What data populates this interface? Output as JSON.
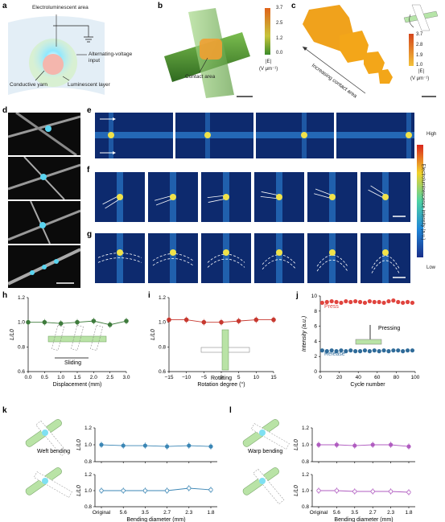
{
  "panels": {
    "a": "a",
    "b": "b",
    "c": "c",
    "d": "d",
    "e": "e",
    "f": "f",
    "g": "g",
    "h": "h",
    "i": "i",
    "j": "j",
    "k": "k",
    "l": "l"
  },
  "a": {
    "electroluminescent_area": "Electroluminescent area",
    "alternating_voltage": "Alternating-voltage",
    "input": "input",
    "conductive_yarn": "Conductive yarn",
    "luminescent_layer": "Luminescent layer"
  },
  "b": {
    "contact_area": "Contact area",
    "colorbar_ticks": [
      "3.7",
      "2.5",
      "1.2",
      "0.0"
    ],
    "unit_top": "|E|",
    "unit_bottom": "(V μm⁻¹)"
  },
  "c": {
    "arrow_label": "Increasing contact area",
    "colorbar_ticks": [
      "3.7",
      "2.8",
      "1.9",
      "1.0"
    ],
    "unit_top": "|E|",
    "unit_bottom": "(V μm⁻¹)"
  },
  "efg_colorbar": {
    "high": "High",
    "low": "Low",
    "title": "Electroluminescence intensity (a.u.)"
  },
  "colors": {
    "heatmap_bg": "#0d2a6e",
    "green_series": "#3e7b3c",
    "red_series": "#c7382f",
    "press": "#e0443e",
    "release": "#2f6b99",
    "blue_series": "#3b86b5",
    "purple_series": "#b05cc0"
  },
  "chart_data": [
    {
      "id": "h",
      "type": "scatter",
      "xlabel": "Displacement (mm)",
      "ylabel": "L/L0",
      "x": [
        0,
        0.5,
        1.0,
        1.5,
        2.0,
        2.5,
        3.0
      ],
      "values": [
        1.0,
        1.0,
        0.99,
        1.0,
        1.01,
        0.98,
        1.01
      ],
      "xlim": [
        0,
        3.0
      ],
      "ylim": [
        0.6,
        1.2
      ],
      "xticks": [
        "0.0",
        "0.5",
        "1.0",
        "1.5",
        "2.0",
        "2.5",
        "3.0"
      ],
      "yticks": [
        "0.6",
        "0.8",
        "1.0",
        "1.2"
      ],
      "annotation": "Sliding"
    },
    {
      "id": "i",
      "type": "scatter",
      "xlabel": "Rotation degree (°)",
      "ylabel": "L/L0",
      "x": [
        -15,
        -10,
        -5,
        0,
        5,
        10,
        15
      ],
      "values": [
        1.02,
        1.02,
        1.0,
        1.0,
        1.01,
        1.02,
        1.02
      ],
      "xlim": [
        -15,
        15
      ],
      "ylim": [
        0.6,
        1.2
      ],
      "xticks": [
        "−15",
        "−10",
        "−5",
        "0",
        "5",
        "10",
        "15"
      ],
      "yticks": [
        "0.6",
        "0.8",
        "1.0",
        "1.2"
      ],
      "annotation": "Rotating"
    },
    {
      "id": "j",
      "type": "scatter",
      "xlabel": "Cycle number",
      "ylabel": "Intensity (a.u.)",
      "xlim": [
        0,
        100
      ],
      "ylim": [
        0,
        10
      ],
      "xticks": [
        "0",
        "20",
        "40",
        "60",
        "80",
        "100"
      ],
      "yticks": [
        "0",
        "2",
        "4",
        "6",
        "8",
        "10"
      ],
      "series": [
        {
          "name": "Press",
          "x": [
            2,
            7,
            12,
            17,
            22,
            27,
            32,
            37,
            42,
            47,
            52,
            57,
            62,
            67,
            72,
            77,
            82,
            87,
            92,
            97
          ],
          "values": [
            9.1,
            9.2,
            9.3,
            9.2,
            9.1,
            9.3,
            9.2,
            9.3,
            9.2,
            9.1,
            9.3,
            9.2,
            9.2,
            9.1,
            9.3,
            9.4,
            9.2,
            9.1,
            9.2,
            9.1
          ]
        },
        {
          "name": "Release",
          "x": [
            2,
            7,
            12,
            17,
            22,
            27,
            32,
            37,
            42,
            47,
            52,
            57,
            62,
            67,
            72,
            77,
            82,
            87,
            92,
            97
          ],
          "values": [
            2.8,
            2.7,
            2.8,
            2.7,
            2.8,
            2.7,
            2.8,
            2.7,
            2.7,
            2.8,
            2.7,
            2.8,
            2.7,
            2.8,
            2.7,
            2.8,
            2.8,
            2.7,
            2.8,
            2.8
          ]
        }
      ],
      "annotation": "Pressing"
    },
    {
      "id": "k-top",
      "type": "line",
      "ylabel": "L/L0",
      "categories": [
        "Original",
        "5.6",
        "3.5",
        "2.7",
        "2.3",
        "1.8"
      ],
      "values": [
        1.0,
        0.99,
        0.99,
        0.98,
        0.99,
        0.98
      ],
      "ylim": [
        0.8,
        1.2
      ],
      "yticks": [
        "0.8",
        "1.0",
        "1.2"
      ],
      "annotation": "Weft bending"
    },
    {
      "id": "k-bottom",
      "type": "line",
      "xlabel": "Bending diameter (mm)",
      "ylabel": "L/L0",
      "categories": [
        "Original",
        "5.6",
        "3.5",
        "2.7",
        "2.3",
        "1.8"
      ],
      "values": [
        1.0,
        1.0,
        1.0,
        1.0,
        1.03,
        1.01
      ],
      "ylim": [
        0.8,
        1.2
      ],
      "yticks": [
        "0.8",
        "1.0",
        "1.2"
      ]
    },
    {
      "id": "l-top",
      "type": "line",
      "ylabel": "L/L0",
      "categories": [
        "Original",
        "5.6",
        "3.5",
        "2.7",
        "2.3",
        "1.8"
      ],
      "values": [
        1.0,
        1.0,
        0.99,
        1.0,
        1.0,
        0.98
      ],
      "ylim": [
        0.8,
        1.2
      ],
      "yticks": [
        "0.8",
        "1.0",
        "1.2"
      ],
      "annotation": "Warp bending"
    },
    {
      "id": "l-bottom",
      "type": "line",
      "xlabel": "Bending diameter (mm)",
      "ylabel": "L/L0",
      "categories": [
        "Original",
        "5.6",
        "3.5",
        "2.7",
        "2.3",
        "1.8"
      ],
      "values": [
        1.0,
        1.0,
        0.99,
        0.99,
        0.99,
        0.98
      ],
      "ylim": [
        0.8,
        1.2
      ],
      "yticks": [
        "0.8",
        "1.0",
        "1.2"
      ]
    }
  ]
}
